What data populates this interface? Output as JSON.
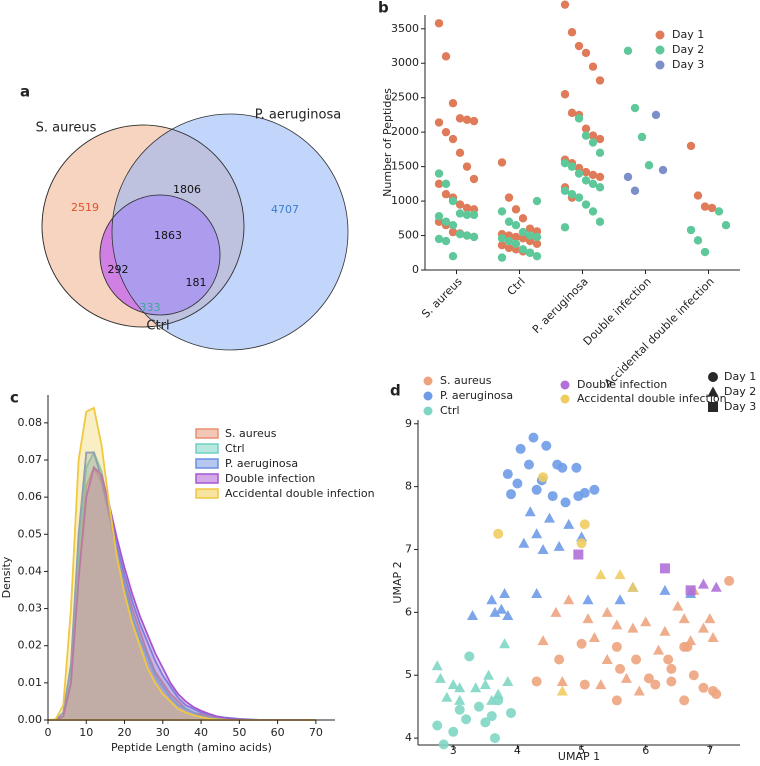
{
  "chart_data": [
    {
      "type": "venn",
      "panel": "a",
      "sets": [
        {
          "name": "S. aureus",
          "color": "#f2b896"
        },
        {
          "name": "P. aeruginosa",
          "color": "#8fb3f5"
        },
        {
          "name": "Ctrl",
          "color": "#a8ead8"
        }
      ],
      "values": [
        2519,
        4707,
        333,
        1806,
        292,
        181,
        1863
      ],
      "value_colors": [
        "#e0502a",
        "#3b7fd0",
        "#3aa89a",
        "#111111",
        "#111111",
        "#111111",
        "#111111"
      ]
    },
    {
      "type": "strip",
      "panel": "b",
      "ylabel": "Number of Peptides",
      "categories": [
        "S. aureus",
        "Ctrl",
        "P. aeruginosa",
        "Double infection",
        "Accidental double infection"
      ],
      "ylim": [
        0,
        3700
      ],
      "yticks": [
        0,
        500,
        1000,
        1500,
        2000,
        2500,
        3000,
        3500
      ],
      "series": [
        {
          "name": "Day 1",
          "color": "#e07b5a",
          "values": [
            [
              3580,
              3100,
              2420,
              2200,
              2180,
              2160,
              2140,
              2000,
              1900,
              1700,
              1500,
              1320,
              1250,
              1100,
              1050,
              950,
              900,
              880,
              700,
              650,
              550,
              530,
              500,
              480
            ],
            [
              1560,
              1050,
              880,
              750,
              600,
              560,
              520,
              500,
              480,
              460,
              420,
              380,
              360,
              320,
              300,
              270,
              250
            ],
            [
              3850,
              3450,
              3250,
              3150,
              2950,
              2750,
              2550,
              2280,
              2250,
              2050,
              1950,
              1900,
              1600,
              1550,
              1480,
              1420,
              1380,
              1350,
              1200,
              1050
            ],
            [],
            [
              1800,
              1080,
              920,
              900
            ]
          ]
        },
        {
          "name": "Day 2",
          "color": "#5ec89a",
          "values": [
            [
              1400,
              1250,
              1000,
              820,
              800,
              800,
              780,
              700,
              650,
              520,
              500,
              480,
              450,
              420,
              200
            ],
            [
              1000,
              850,
              700,
              650,
              550,
              500,
              480,
              460,
              420,
              380,
              300,
              250,
              200,
              180
            ],
            [
              2200,
              1950,
              1850,
              1700,
              1550,
              1500,
              1400,
              1300,
              1250,
              1200,
              1150,
              1100,
              1050,
              950,
              850,
              700,
              620
            ],
            [
              3180,
              2350,
              1930,
              1520
            ],
            [
              850,
              650,
              580,
              430,
              260
            ]
          ]
        },
        {
          "name": "Day 3",
          "color": "#7d8fc9",
          "values": [
            [],
            [],
            [],
            [
              2250,
              1450,
              1350,
              1150
            ],
            []
          ]
        }
      ]
    },
    {
      "type": "density",
      "panel": "c",
      "xlabel": "Peptide Length (amino acids)",
      "ylabel": "Density",
      "x": [
        0,
        2,
        4,
        6,
        8,
        10,
        12,
        14,
        16,
        18,
        20,
        22,
        24,
        26,
        28,
        30,
        32,
        34,
        36,
        38,
        40,
        42,
        44,
        46,
        48,
        50,
        52,
        54,
        56,
        58,
        60,
        62,
        64,
        66,
        68,
        70
      ],
      "xlim": [
        0,
        75
      ],
      "xticks": [
        0,
        10,
        20,
        30,
        40,
        50,
        60,
        70
      ],
      "ylim": [
        0,
        0.0875
      ],
      "yticks": [
        {
          "value": 0,
          "label": "0.00"
        },
        {
          "value": 0.01,
          "label": "0.01"
        },
        {
          "value": 0.02,
          "label": "0.02"
        },
        {
          "value": 0.03,
          "label": "0.03"
        },
        {
          "value": 0.04,
          "label": "0.04"
        },
        {
          "value": 0.05,
          "label": "0.05"
        },
        {
          "value": 0.06,
          "label": "0.06"
        },
        {
          "value": 0.07,
          "label": "0.07"
        },
        {
          "value": 0.08,
          "label": "0.08"
        }
      ],
      "series": [
        {
          "name": "S. aureus",
          "color": "#e8906f",
          "values": [
            0,
            0,
            0.001,
            0.01,
            0.04,
            0.063,
            0.068,
            0.064,
            0.055,
            0.045,
            0.037,
            0.03,
            0.024,
            0.018,
            0.013,
            0.01,
            0.007,
            0.005,
            0.003,
            0.002,
            0.0015,
            0.001,
            0.0006,
            0.0003,
            0.0002,
            0.0001,
            0,
            0,
            0,
            0,
            0,
            0,
            0,
            0,
            0,
            0
          ]
        },
        {
          "name": "Ctrl",
          "color": "#6fd0c0",
          "values": [
            0,
            0,
            0.001,
            0.012,
            0.045,
            0.068,
            0.072,
            0.067,
            0.056,
            0.045,
            0.036,
            0.028,
            0.022,
            0.017,
            0.012,
            0.009,
            0.006,
            0.004,
            0.003,
            0.002,
            0.001,
            0.0007,
            0.0004,
            0.0002,
            0.0001,
            0,
            0,
            0,
            0,
            0,
            0,
            0,
            0,
            0,
            0,
            0
          ]
        },
        {
          "name": "P. aeruginosa",
          "color": "#6b8fe0",
          "values": [
            0,
            0,
            0.002,
            0.015,
            0.05,
            0.072,
            0.072,
            0.065,
            0.056,
            0.047,
            0.039,
            0.032,
            0.026,
            0.021,
            0.016,
            0.012,
            0.009,
            0.006,
            0.004,
            0.003,
            0.002,
            0.0015,
            0.001,
            0.0007,
            0.0005,
            0.0003,
            0.0002,
            0.0001,
            0,
            0,
            0,
            0,
            0,
            0,
            0,
            0
          ]
        },
        {
          "name": "Double infection",
          "color": "#a855d0",
          "values": [
            0,
            0,
            0.001,
            0.01,
            0.038,
            0.06,
            0.068,
            0.066,
            0.058,
            0.049,
            0.041,
            0.034,
            0.028,
            0.023,
            0.018,
            0.014,
            0.01,
            0.007,
            0.005,
            0.0035,
            0.0025,
            0.0017,
            0.001,
            0.0006,
            0.0003,
            0.0002,
            0.0001,
            0,
            0,
            0,
            0,
            0,
            0,
            0,
            0,
            0
          ]
        },
        {
          "name": "Accidental double infection",
          "color": "#f0c840",
          "values": [
            0,
            0.0002,
            0.004,
            0.03,
            0.07,
            0.083,
            0.084,
            0.074,
            0.058,
            0.044,
            0.034,
            0.026,
            0.02,
            0.014,
            0.01,
            0.007,
            0.005,
            0.003,
            0.002,
            0.0013,
            0.0008,
            0.0004,
            0.0002,
            0.0001,
            0,
            0,
            0,
            0,
            0,
            0,
            0,
            0,
            0,
            0,
            0,
            0
          ]
        }
      ]
    },
    {
      "type": "scatter",
      "panel": "d",
      "xlabel": "UMAP 1",
      "ylabel": "UMAP 2",
      "xlim": [
        2.45,
        7.47
      ],
      "xticks": [
        3,
        4,
        5,
        6,
        7
      ],
      "ylim": [
        3.89,
        9.06
      ],
      "yticks": [
        4,
        5,
        6,
        7,
        8,
        9
      ],
      "shapes": [
        {
          "name": "Day 1",
          "marker": "circle"
        },
        {
          "name": "Day 2",
          "marker": "triangle"
        },
        {
          "name": "Day 3",
          "marker": "square"
        }
      ],
      "series": [
        {
          "name": "S. aureus",
          "color": "#eda47e",
          "x": [
            4.6,
            4.8,
            5.1,
            5.4,
            5.8,
            5.2,
            6.0,
            6.3,
            6.6,
            6.9,
            7.0,
            7.05,
            5.4,
            5.7,
            5.9,
            5.3,
            4.4,
            6.5,
            6.75,
            5.55,
            4.7,
            6.2,
            6.7,
            4.3,
            4.65,
            5.0,
            5.05,
            5.55,
            5.6,
            5.85,
            6.05,
            6.15,
            6.4,
            6.6,
            6.65,
            6.4,
            6.75,
            6.9,
            7.05,
            7.1,
            7.3,
            6.6,
            5.55,
            6.35
          ],
          "y": [
            6.0,
            6.2,
            5.9,
            6.0,
            5.75,
            5.6,
            5.85,
            5.7,
            5.9,
            5.75,
            5.9,
            5.6,
            5.25,
            4.95,
            4.75,
            4.85,
            5.55,
            6.1,
            6.35,
            5.8,
            4.9,
            5.4,
            5.55,
            4.9,
            5.25,
            5.5,
            4.85,
            5.45,
            5.1,
            5.25,
            4.95,
            4.85,
            4.9,
            5.45,
            5.45,
            5.1,
            5.0,
            4.8,
            4.75,
            4.7,
            6.5,
            4.6,
            4.6,
            5.25
          ],
          "marker": [
            "triangle",
            "triangle",
            "triangle",
            "triangle",
            "triangle",
            "triangle",
            "triangle",
            "triangle",
            "triangle",
            "triangle",
            "triangle",
            "triangle",
            "triangle",
            "triangle",
            "triangle",
            "triangle",
            "triangle",
            "triangle",
            "triangle",
            "triangle",
            "triangle",
            "triangle",
            "triangle",
            "circle",
            "circle",
            "circle",
            "circle",
            "circle",
            "circle",
            "circle",
            "circle",
            "circle",
            "circle",
            "circle",
            "circle",
            "circle",
            "circle",
            "circle",
            "circle",
            "circle",
            "circle",
            "circle",
            "circle",
            "circle"
          ]
        },
        {
          "name": "P. aeruginosa",
          "color": "#6f9be8",
          "x": [
            4.25,
            4.05,
            4.45,
            4.62,
            4.7,
            4.18,
            3.85,
            4.0,
            4.38,
            4.3,
            4.55,
            4.75,
            3.9,
            4.95,
            5.05,
            4.92,
            5.2,
            4.2,
            4.5,
            4.3,
            4.1,
            4.4,
            4.8,
            5.0,
            4.65,
            3.6,
            3.75,
            3.85,
            3.65,
            4.3,
            5.1,
            5.6,
            5.8,
            6.3,
            6.7,
            3.8,
            3.3
          ],
          "y": [
            8.78,
            8.6,
            8.65,
            8.35,
            8.3,
            8.35,
            8.2,
            8.05,
            8.1,
            7.95,
            7.85,
            7.75,
            7.88,
            7.85,
            7.9,
            8.3,
            7.95,
            7.6,
            7.5,
            7.25,
            7.1,
            7.0,
            7.4,
            7.2,
            7.05,
            6.2,
            6.05,
            5.95,
            6.0,
            6.3,
            6.2,
            6.2,
            6.4,
            6.35,
            6.3,
            6.3,
            5.95
          ],
          "marker": [
            "circle",
            "circle",
            "circle",
            "circle",
            "circle",
            "circle",
            "circle",
            "circle",
            "circle",
            "circle",
            "circle",
            "circle",
            "circle",
            "circle",
            "circle",
            "circle",
            "circle",
            "triangle",
            "triangle",
            "triangle",
            "triangle",
            "triangle",
            "triangle",
            "triangle",
            "triangle",
            "triangle",
            "triangle",
            "triangle",
            "triangle",
            "triangle",
            "triangle",
            "triangle",
            "triangle",
            "triangle",
            "triangle",
            "triangle",
            "triangle"
          ]
        },
        {
          "name": "Ctrl",
          "color": "#7fd6c4",
          "x": [
            2.75,
            2.8,
            2.9,
            3.0,
            3.1,
            3.35,
            3.5,
            3.7,
            3.85,
            3.55,
            3.8,
            3.1,
            3.6,
            3.25,
            2.75,
            2.85,
            3.0,
            3.1,
            3.2,
            3.5,
            3.6,
            3.7,
            3.9,
            3.4,
            3.65
          ],
          "y": [
            5.15,
            4.95,
            4.65,
            4.85,
            4.8,
            4.8,
            4.85,
            4.7,
            4.9,
            5.0,
            5.5,
            4.6,
            4.6,
            5.3,
            4.2,
            3.9,
            4.1,
            4.45,
            4.3,
            4.25,
            4.35,
            4.6,
            4.4,
            4.5,
            4.0
          ],
          "marker": [
            "triangle",
            "triangle",
            "triangle",
            "triangle",
            "triangle",
            "triangle",
            "triangle",
            "triangle",
            "triangle",
            "triangle",
            "triangle",
            "triangle",
            "triangle",
            "circle",
            "circle",
            "circle",
            "circle",
            "circle",
            "circle",
            "circle",
            "circle",
            "circle",
            "circle",
            "circle",
            "circle"
          ]
        },
        {
          "name": "Double infection",
          "color": "#b070d8",
          "x": [
            6.3,
            6.7,
            4.95,
            6.9,
            7.1
          ],
          "y": [
            6.7,
            6.35,
            6.92,
            6.45,
            6.4
          ],
          "marker": [
            "square",
            "square",
            "square",
            "triangle",
            "triangle"
          ]
        },
        {
          "name": "Accidental double infection",
          "color": "#f0cc60",
          "x": [
            3.7,
            4.4,
            5.0,
            5.05,
            5.3,
            5.6,
            5.8,
            4.7
          ],
          "y": [
            7.25,
            8.15,
            7.1,
            7.4,
            6.6,
            6.6,
            6.4,
            4.75
          ],
          "marker": [
            "circle",
            "circle",
            "circle",
            "circle",
            "triangle",
            "triangle",
            "triangle",
            "triangle"
          ]
        }
      ]
    }
  ]
}
